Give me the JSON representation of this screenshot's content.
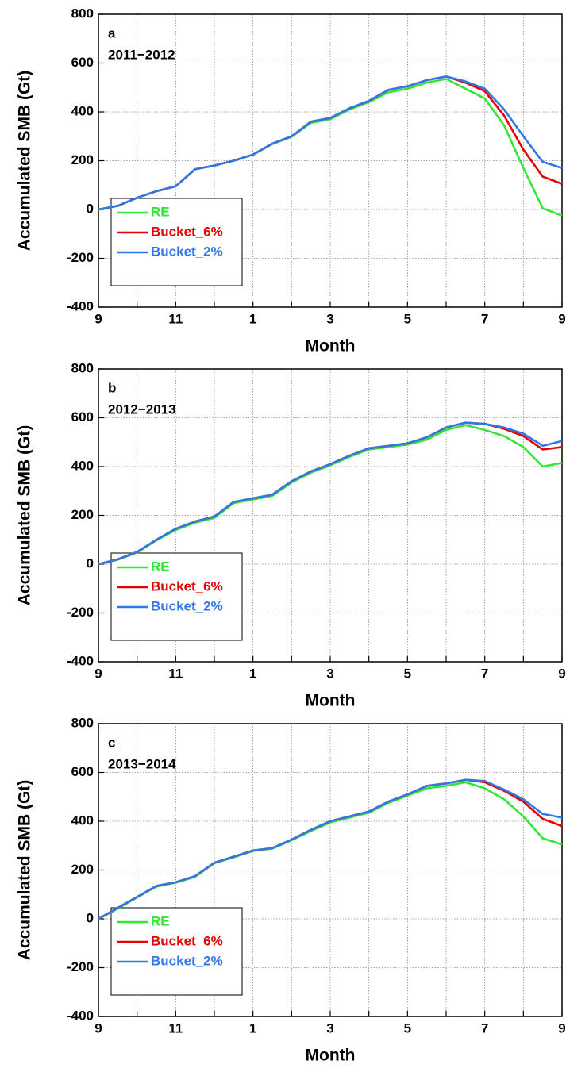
{
  "chart_data": [
    {
      "type": "line",
      "annotations": [
        "a",
        "2011−2012"
      ],
      "xlabel": "Month",
      "ylabel": "Accumulated SMB (Gt)",
      "x": [
        0,
        0.5,
        1,
        1.5,
        2,
        2.5,
        3,
        3.5,
        4,
        4.5,
        5,
        5.5,
        6,
        6.5,
        7,
        7.5,
        8,
        8.5,
        9,
        9.5,
        10,
        10.5,
        11,
        11.5,
        12
      ],
      "series": [
        {
          "name": "RE",
          "color": "#33e633",
          "values": [
            0,
            15,
            48,
            75,
            95,
            165,
            180,
            200,
            225,
            268,
            298,
            355,
            370,
            410,
            440,
            480,
            495,
            520,
            535,
            495,
            455,
            345,
            170,
            5,
            -25
          ]
        },
        {
          "name": "Bucket_6%",
          "color": "#e60000",
          "values": [
            0,
            15,
            48,
            75,
            95,
            165,
            180,
            200,
            225,
            270,
            300,
            360,
            375,
            415,
            445,
            490,
            505,
            530,
            545,
            520,
            485,
            385,
            245,
            135,
            105
          ]
        },
        {
          "name": "Bucket_2%",
          "color": "#3377e6",
          "values": [
            0,
            15,
            48,
            75,
            95,
            165,
            180,
            200,
            225,
            270,
            300,
            360,
            375,
            415,
            445,
            490,
            505,
            530,
            545,
            525,
            495,
            410,
            300,
            195,
            170
          ]
        }
      ],
      "xlim": [
        0,
        12
      ],
      "ylim": [
        -400,
        800
      ],
      "xticks": [
        {
          "value": 0,
          "label": "9"
        },
        {
          "value": 1,
          "label": null
        },
        {
          "value": 2,
          "label": "11"
        },
        {
          "value": 3,
          "label": null
        },
        {
          "value": 4,
          "label": "1"
        },
        {
          "value": 5,
          "label": null
        },
        {
          "value": 6,
          "label": "3"
        },
        {
          "value": 7,
          "label": null
        },
        {
          "value": 8,
          "label": "5"
        },
        {
          "value": 9,
          "label": null
        },
        {
          "value": 10,
          "label": "7"
        },
        {
          "value": 11,
          "label": null
        },
        {
          "value": 12,
          "label": "9"
        }
      ],
      "yticks": [
        -400,
        -200,
        0,
        200,
        400,
        600,
        800
      ],
      "grid": true,
      "legend": "lower left"
    },
    {
      "type": "line",
      "annotations": [
        "b",
        "2012−2013"
      ],
      "xlabel": "Month",
      "ylabel": "Accumulated SMB (Gt)",
      "x": [
        0,
        0.5,
        1,
        1.5,
        2,
        2.5,
        3,
        3.5,
        4,
        4.5,
        5,
        5.5,
        6,
        6.5,
        7,
        7.5,
        8,
        8.5,
        9,
        9.5,
        10,
        10.5,
        11,
        11.5,
        12
      ],
      "series": [
        {
          "name": "RE",
          "color": "#33e633",
          "values": [
            0,
            18,
            48,
            98,
            140,
            170,
            190,
            250,
            265,
            280,
            335,
            375,
            405,
            440,
            470,
            480,
            490,
            510,
            550,
            570,
            550,
            525,
            480,
            400,
            415
          ]
        },
        {
          "name": "Bucket_6%",
          "color": "#e60000",
          "values": [
            0,
            20,
            50,
            100,
            145,
            175,
            195,
            255,
            270,
            285,
            340,
            380,
            410,
            445,
            475,
            485,
            495,
            520,
            560,
            580,
            575,
            555,
            525,
            470,
            480
          ]
        },
        {
          "name": "Bucket_2%",
          "color": "#3377e6",
          "values": [
            0,
            20,
            50,
            100,
            145,
            175,
            195,
            255,
            270,
            285,
            340,
            380,
            410,
            445,
            475,
            485,
            495,
            520,
            560,
            580,
            575,
            560,
            535,
            485,
            505
          ]
        }
      ],
      "xlim": [
        0,
        12
      ],
      "ylim": [
        -400,
        800
      ],
      "xticks": [
        {
          "value": 0,
          "label": "9"
        },
        {
          "value": 1,
          "label": null
        },
        {
          "value": 2,
          "label": "11"
        },
        {
          "value": 3,
          "label": null
        },
        {
          "value": 4,
          "label": "1"
        },
        {
          "value": 5,
          "label": null
        },
        {
          "value": 6,
          "label": "3"
        },
        {
          "value": 7,
          "label": null
        },
        {
          "value": 8,
          "label": "5"
        },
        {
          "value": 9,
          "label": null
        },
        {
          "value": 10,
          "label": "7"
        },
        {
          "value": 11,
          "label": null
        },
        {
          "value": 12,
          "label": "9"
        }
      ],
      "yticks": [
        -400,
        -200,
        0,
        200,
        400,
        600,
        800
      ],
      "grid": true,
      "legend": "lower left"
    },
    {
      "type": "line",
      "annotations": [
        "c",
        "2013−2014"
      ],
      "xlabel": "Month",
      "ylabel": "Accumulated SMB (Gt)",
      "x": [
        0,
        0.5,
        1,
        1.5,
        2,
        2.5,
        3,
        3.5,
        4,
        4.5,
        5,
        5.5,
        6,
        6.5,
        7,
        7.5,
        8,
        8.5,
        9,
        9.5,
        10,
        10.5,
        11,
        11.5,
        12
      ],
      "series": [
        {
          "name": "RE",
          "color": "#33e633",
          "values": [
            0,
            42,
            88,
            132,
            148,
            172,
            228,
            252,
            278,
            288,
            322,
            360,
            395,
            415,
            435,
            475,
            505,
            535,
            545,
            560,
            535,
            490,
            420,
            330,
            305
          ]
        },
        {
          "name": "Bucket_6%",
          "color": "#e60000",
          "values": [
            0,
            45,
            90,
            135,
            150,
            175,
            230,
            255,
            280,
            290,
            325,
            365,
            400,
            420,
            440,
            480,
            510,
            545,
            555,
            570,
            560,
            525,
            480,
            410,
            380
          ]
        },
        {
          "name": "Bucket_2%",
          "color": "#3377e6",
          "values": [
            0,
            45,
            90,
            135,
            150,
            175,
            230,
            255,
            280,
            290,
            325,
            365,
            400,
            420,
            440,
            480,
            510,
            545,
            555,
            570,
            565,
            530,
            490,
            430,
            415
          ]
        }
      ],
      "xlim": [
        0,
        12
      ],
      "ylim": [
        -400,
        800
      ],
      "xticks": [
        {
          "value": 0,
          "label": "9"
        },
        {
          "value": 1,
          "label": null
        },
        {
          "value": 2,
          "label": "11"
        },
        {
          "value": 3,
          "label": null
        },
        {
          "value": 4,
          "label": "1"
        },
        {
          "value": 5,
          "label": null
        },
        {
          "value": 6,
          "label": "3"
        },
        {
          "value": 7,
          "label": null
        },
        {
          "value": 8,
          "label": "5"
        },
        {
          "value": 9,
          "label": null
        },
        {
          "value": 10,
          "label": "7"
        },
        {
          "value": 11,
          "label": null
        },
        {
          "value": 12,
          "label": "9"
        }
      ],
      "yticks": [
        -400,
        -200,
        0,
        200,
        400,
        600,
        800
      ],
      "grid": true,
      "legend": "lower left"
    }
  ]
}
